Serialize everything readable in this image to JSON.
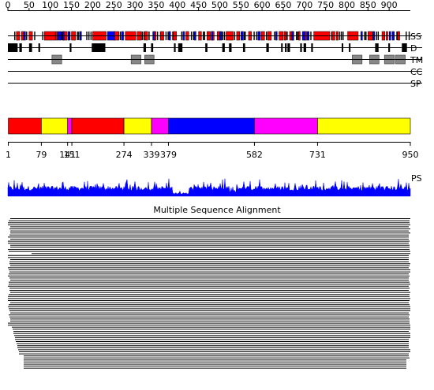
{
  "top_ruler": {
    "ticks": [
      0,
      50,
      100,
      150,
      200,
      250,
      300,
      350,
      400,
      450,
      500,
      550,
      600,
      650,
      700,
      750,
      800,
      850,
      900
    ],
    "length": 950
  },
  "tracks": [
    {
      "id": "ss",
      "label": "SS"
    },
    {
      "id": "d",
      "label": "D"
    },
    {
      "id": "tm",
      "label": "TM"
    },
    {
      "id": "cc",
      "label": "CC"
    },
    {
      "id": "sp",
      "label": "SP"
    }
  ],
  "ss_track": {
    "helix_color": "#ff0000",
    "strand_color": "#0000ff",
    "helices": [
      [
        20,
        28
      ],
      [
        32,
        37
      ],
      [
        50,
        58
      ],
      [
        86,
        112
      ],
      [
        113,
        117
      ],
      [
        130,
        140
      ],
      [
        150,
        160
      ],
      [
        200,
        232
      ],
      [
        250,
        262
      ],
      [
        277,
        302
      ],
      [
        305,
        315
      ],
      [
        322,
        330
      ],
      [
        345,
        350
      ],
      [
        360,
        368
      ],
      [
        390,
        398
      ],
      [
        420,
        427
      ],
      [
        450,
        457
      ],
      [
        470,
        478
      ],
      [
        480,
        487
      ],
      [
        494,
        500
      ],
      [
        515,
        532
      ],
      [
        540,
        547
      ],
      [
        568,
        575
      ],
      [
        598,
        606
      ],
      [
        613,
        622
      ],
      [
        640,
        650
      ],
      [
        652,
        657
      ],
      [
        665,
        675
      ],
      [
        686,
        690
      ],
      [
        700,
        705
      ],
      [
        722,
        760
      ],
      [
        765,
        772
      ],
      [
        775,
        780
      ],
      [
        802,
        827
      ],
      [
        850,
        861
      ],
      [
        883,
        890
      ],
      [
        893,
        897
      ],
      [
        920,
        925
      ]
    ],
    "strands": [
      [
        38,
        41
      ],
      [
        118,
        126
      ],
      [
        129,
        132
      ],
      [
        142,
        146
      ],
      [
        170,
        173
      ],
      [
        235,
        252
      ],
      [
        268,
        273
      ],
      [
        342,
        345
      ],
      [
        380,
        384
      ],
      [
        413,
        417
      ],
      [
        440,
        444
      ],
      [
        480,
        484
      ],
      [
        500,
        505
      ],
      [
        550,
        556
      ],
      [
        590,
        596
      ],
      [
        632,
        635
      ],
      [
        670,
        674
      ],
      [
        695,
        702
      ],
      [
        706,
        711
      ],
      [
        833,
        837
      ],
      [
        862,
        866
      ],
      [
        900,
        904
      ],
      [
        907,
        912
      ]
    ],
    "ticks": [
      15,
      43,
      62,
      81,
      126,
      145,
      163,
      166,
      185,
      190,
      195,
      237,
      264,
      316,
      320,
      332,
      352,
      359,
      372,
      377,
      388,
      409,
      413,
      432,
      437,
      460,
      463,
      506,
      510,
      534,
      557,
      559,
      580,
      586,
      609,
      628,
      655,
      658,
      680,
      683,
      714,
      763,
      782,
      786,
      790,
      841,
      844,
      869,
      873,
      910,
      917,
      939,
      946
    ]
  },
  "d_track": {
    "color": "#000000",
    "segments": [
      [
        0,
        23
      ],
      [
        27,
        33
      ],
      [
        50,
        57
      ],
      [
        72,
        76
      ],
      [
        146,
        150
      ],
      [
        198,
        230
      ],
      [
        320,
        326
      ],
      [
        338,
        343
      ],
      [
        392,
        396
      ],
      [
        402,
        412
      ],
      [
        466,
        471
      ],
      [
        506,
        512
      ],
      [
        522,
        528
      ],
      [
        555,
        560
      ],
      [
        610,
        616
      ],
      [
        645,
        648
      ],
      [
        654,
        658
      ],
      [
        660,
        666
      ],
      [
        690,
        694
      ],
      [
        698,
        704
      ],
      [
        716,
        720
      ],
      [
        788,
        791
      ],
      [
        805,
        808
      ],
      [
        867,
        871
      ],
      [
        871,
        875
      ],
      [
        898,
        902
      ],
      [
        930,
        942
      ]
    ]
  },
  "tm_track": {
    "color": "#888888",
    "segments": [
      [
        104,
        127
      ],
      [
        291,
        314
      ],
      [
        323,
        345
      ],
      [
        813,
        836
      ],
      [
        854,
        876
      ],
      [
        889,
        912
      ],
      [
        915,
        938
      ]
    ]
  },
  "domains_bar": {
    "segments": [
      {
        "start": 1,
        "end": 79,
        "color": "#ff0000"
      },
      {
        "start": 79,
        "end": 141,
        "color": "#ffff00"
      },
      {
        "start": 141,
        "end": 151,
        "color": "#ff00ff"
      },
      {
        "start": 151,
        "end": 274,
        "color": "#ff0000"
      },
      {
        "start": 274,
        "end": 339,
        "color": "#ffff00"
      },
      {
        "start": 339,
        "end": 379,
        "color": "#ff00ff"
      },
      {
        "start": 379,
        "end": 582,
        "color": "#0000ff"
      },
      {
        "start": 582,
        "end": 731,
        "color": "#ff00ff"
      },
      {
        "start": 731,
        "end": 950,
        "color": "#ffff00"
      }
    ],
    "boundary_labels": [
      {
        "value": 1,
        "text": "1"
      },
      {
        "value": 79,
        "text": "79"
      },
      {
        "value": 141,
        "text": "141"
      },
      {
        "value": 151,
        "text": "151"
      },
      {
        "value": 274,
        "text": "274"
      },
      {
        "value": 339,
        "text": "339"
      },
      {
        "value": 379,
        "text": "379"
      },
      {
        "value": 582,
        "text": "582"
      },
      {
        "value": 731,
        "text": "731"
      },
      {
        "value": 950,
        "text": "950"
      }
    ]
  },
  "ps_plot": {
    "label": "PS",
    "color": "#0000ff"
  },
  "msa": {
    "title": "Multiple Sequence Alignment",
    "line_color": "#000000",
    "row_count": 74
  }
}
